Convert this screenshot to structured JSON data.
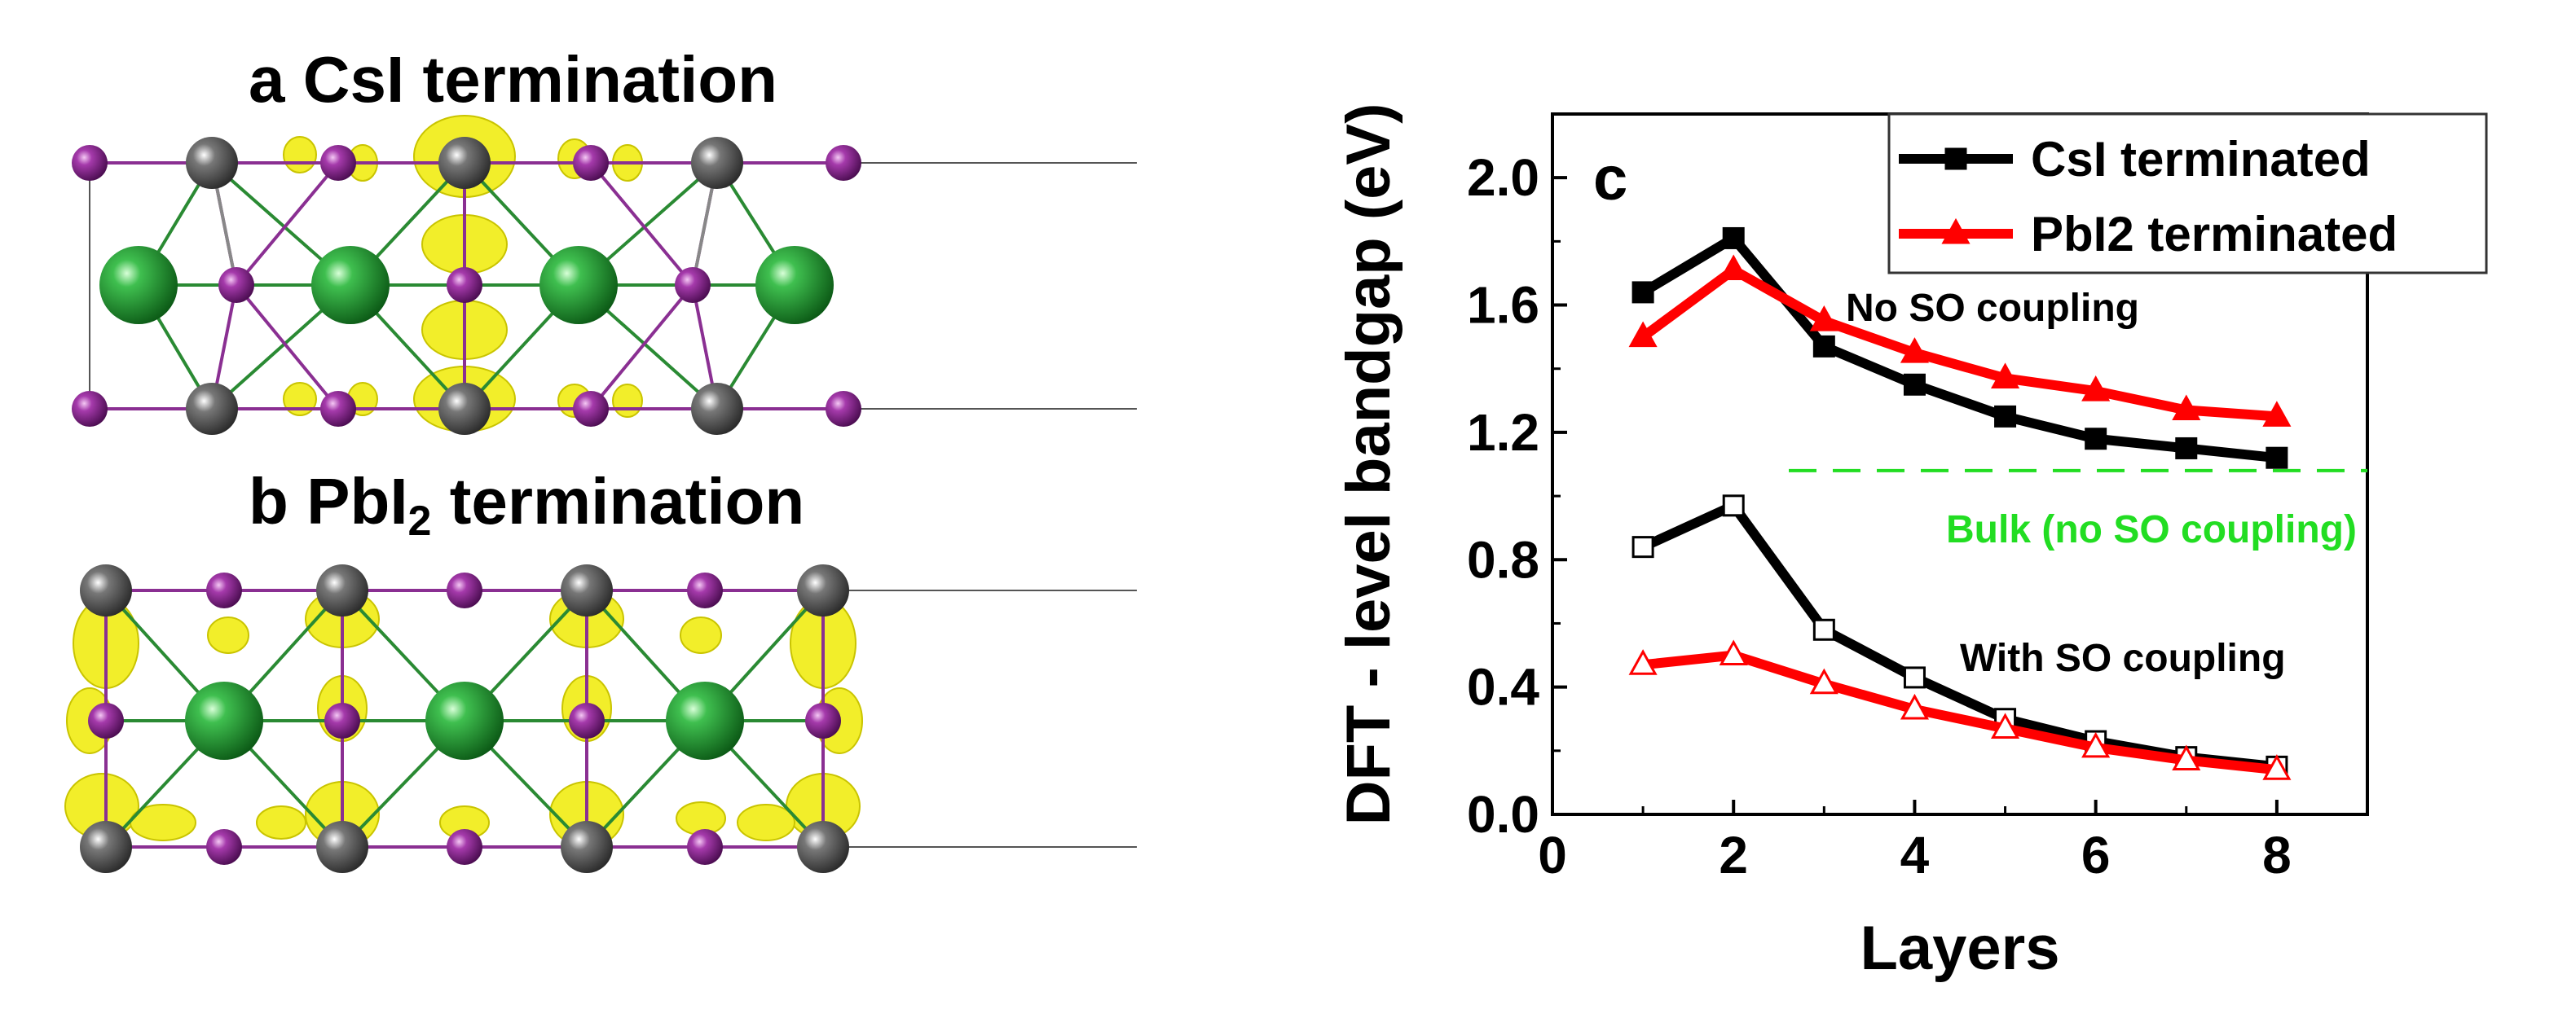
{
  "panels": {
    "a_label": "a CsI termination",
    "b_label_main": "b PbI",
    "b_label_sub": "2",
    "b_label_end": " termination"
  },
  "colors": {
    "cs": "#1f8f2f",
    "iodine": "#9b2fa0",
    "pb": "#5a5a5a",
    "isosurface": "#f2ee2a",
    "series_csi": "#000000",
    "series_pbi2": "#ff0000",
    "bulk_line": "#22dd22"
  },
  "chart_data": {
    "type": "line",
    "panel_label": "c",
    "xlabel": "Layers",
    "ylabel": "DFT - level bandgap (eV)",
    "xlim": [
      0,
      9
    ],
    "ylim": [
      0,
      2.2
    ],
    "xticks": [
      0,
      2,
      4,
      6,
      8
    ],
    "xtick_labels": [
      "0",
      "2",
      "4",
      "6",
      "8"
    ],
    "yticks": [
      0,
      0.4,
      0.8,
      1.2,
      1.6,
      2.0
    ],
    "ytick_labels": [
      "0.0",
      "0.4",
      "0.8",
      "1.2",
      "1.6",
      "2.0"
    ],
    "x": [
      1,
      2,
      3,
      4,
      5,
      6,
      7,
      8
    ],
    "series": [
      {
        "name": "CsI terminated",
        "group": "No SO coupling",
        "color": "#000000",
        "marker": "square",
        "filled": true,
        "values": [
          1.64,
          1.81,
          1.47,
          1.35,
          1.25,
          1.18,
          1.15,
          1.12
        ]
      },
      {
        "name": "PbI2 terminated",
        "group": "No SO coupling",
        "color": "#ff0000",
        "marker": "triangle",
        "filled": true,
        "values": [
          1.5,
          1.71,
          1.55,
          1.45,
          1.37,
          1.33,
          1.27,
          1.25
        ]
      },
      {
        "name": "CsI terminated",
        "group": "With SO coupling",
        "color": "#000000",
        "marker": "square",
        "filled": false,
        "values": [
          0.84,
          0.97,
          0.58,
          0.43,
          0.3,
          0.23,
          0.18,
          0.15
        ]
      },
      {
        "name": "PbI2 terminated",
        "group": "With SO coupling",
        "color": "#ff0000",
        "marker": "triangle",
        "filled": false,
        "values": [
          0.47,
          0.5,
          0.41,
          0.33,
          0.27,
          0.21,
          0.17,
          0.14
        ]
      }
    ],
    "reference_line": {
      "y": 1.08,
      "label": "Bulk (no SO coupling)",
      "color": "#22dd22",
      "style": "dashed"
    },
    "annotations": [
      "No SO coupling",
      "With SO coupling"
    ],
    "legend": {
      "position": "top-right",
      "entries": [
        "CsI terminated",
        "PbI2 terminated"
      ]
    }
  }
}
